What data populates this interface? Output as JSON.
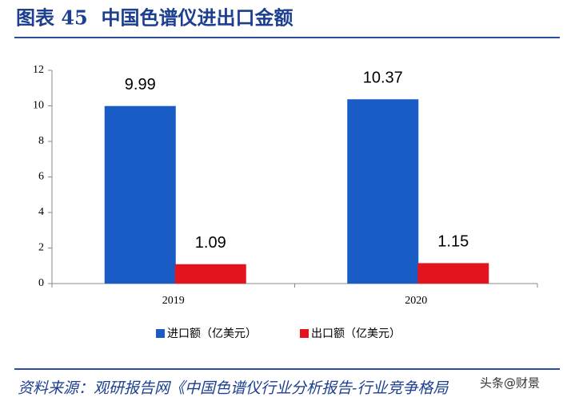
{
  "title": "图表 45  中国色谱仪进出口金额",
  "chart_data": {
    "type": "bar",
    "categories": [
      "2019",
      "2020"
    ],
    "series": [
      {
        "name": "进口额（亿美元）",
        "color": "#1a5cc6",
        "values": [
          9.99,
          10.37
        ]
      },
      {
        "name": "出口额（亿美元）",
        "color": "#e3141d",
        "values": [
          1.09,
          1.15
        ]
      }
    ],
    "ylim": [
      0,
      12
    ],
    "yticks": [
      0,
      2,
      4,
      6,
      8,
      10,
      12
    ],
    "grid": false,
    "legend": "bottom"
  },
  "source": "资料来源：观研报告网《中国色谱仪行业分析报告-行业竞争格局",
  "watermark": "头条@财景"
}
